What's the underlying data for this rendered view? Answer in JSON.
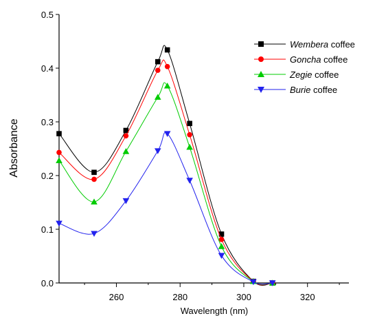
{
  "chart_data": {
    "type": "line",
    "xlabel": "Wavelength (nm)",
    "ylabel": "Absorbance",
    "xlim": [
      242,
      333
    ],
    "ylim": [
      0,
      0.5
    ],
    "xticks": [
      260,
      280,
      300,
      320
    ],
    "yticks": [
      0.0,
      0.1,
      0.2,
      0.3,
      0.4,
      0.5
    ],
    "xtick_labels": [
      "260",
      "280",
      "300",
      "320"
    ],
    "ytick_labels": [
      "0.0",
      "0.1",
      "0.2",
      "0.3",
      "0.4",
      "0.5"
    ],
    "grid": false,
    "legend_position": "top-right",
    "series": [
      {
        "name_italic": "Wembera",
        "name_rest": " coffee",
        "color": "#000000",
        "marker": "square",
        "x": [
          242,
          253,
          263,
          273,
          276,
          283,
          293,
          303,
          309
        ],
        "y": [
          0.278,
          0.206,
          0.284,
          0.412,
          0.434,
          0.297,
          0.091,
          0.003,
          0.0
        ]
      },
      {
        "name_italic": "Goncha",
        "name_rest": " coffee",
        "color": "#ff0000",
        "marker": "circle",
        "x": [
          242,
          253,
          263,
          273,
          276,
          283,
          293,
          303,
          309
        ],
        "y": [
          0.243,
          0.193,
          0.274,
          0.396,
          0.403,
          0.276,
          0.081,
          0.003,
          0.0
        ]
      },
      {
        "name_italic": "Zegie",
        "name_rest": " coffee",
        "color": "#00cc00",
        "marker": "triangle-up",
        "x": [
          242,
          253,
          263,
          273,
          276,
          283,
          293,
          303,
          309
        ],
        "y": [
          0.228,
          0.151,
          0.245,
          0.346,
          0.367,
          0.253,
          0.068,
          0.003,
          0.0
        ]
      },
      {
        "name_italic": "Burie",
        "name_rest": " coffee",
        "color": "#2222ee",
        "marker": "triangle-down",
        "x": [
          242,
          253,
          263,
          273,
          276,
          283,
          293,
          303,
          309
        ],
        "y": [
          0.111,
          0.092,
          0.153,
          0.246,
          0.278,
          0.191,
          0.051,
          0.002,
          0.0
        ]
      }
    ]
  }
}
